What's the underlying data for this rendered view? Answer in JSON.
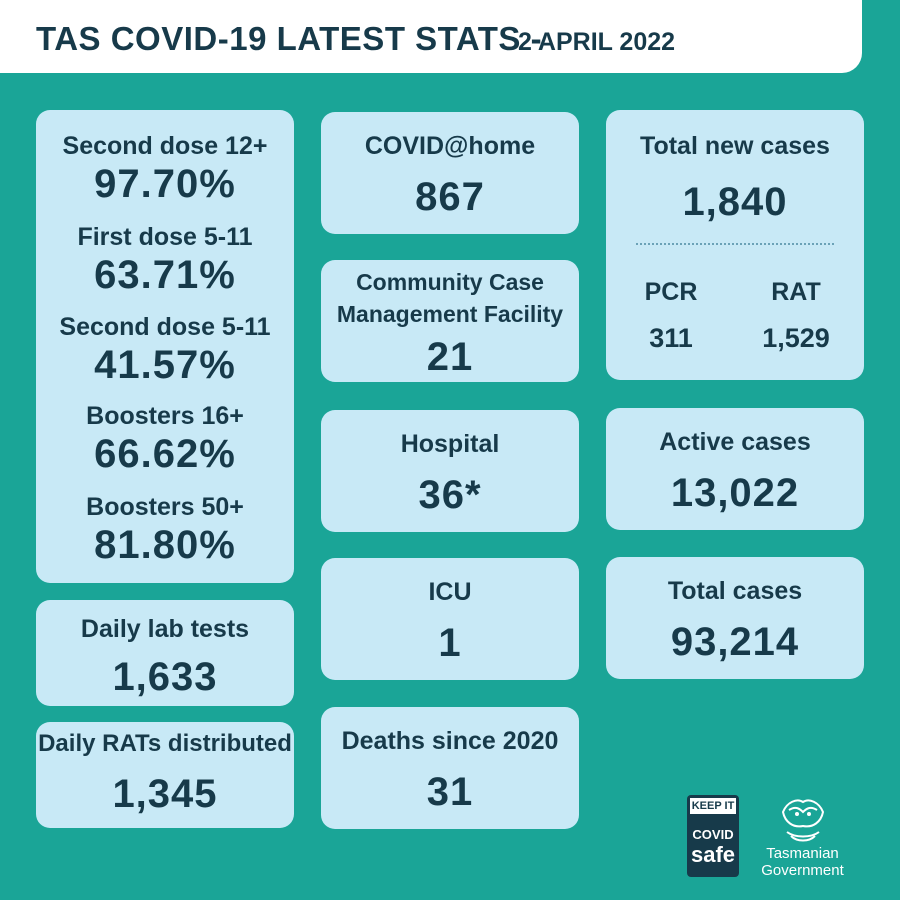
{
  "header": {
    "title": "TAS COVID-19 LATEST STATS -",
    "date": "2 APRIL 2022"
  },
  "vaccination": [
    {
      "label": "Second dose  12+",
      "value": "97.70%"
    },
    {
      "label": "First dose 5-11",
      "value": "63.71%"
    },
    {
      "label": "Second dose 5-11",
      "value": "41.57%"
    },
    {
      "label": "Boosters 16+",
      "value": "66.62%"
    },
    {
      "label": "Boosters 50+",
      "value": "81.80%"
    }
  ],
  "daily_lab_tests": {
    "label": "Daily lab tests",
    "value": "1,633"
  },
  "daily_rats": {
    "label": "Daily RATs distributed",
    "value": "1,345"
  },
  "covid_at_home": {
    "label": "COVID@home",
    "value": "867"
  },
  "ccmf": {
    "label_line1": "Community Case",
    "label_line2": "Management Facility",
    "value": "21"
  },
  "hospital": {
    "label": "Hospital",
    "value": "36*"
  },
  "icu": {
    "label": "ICU",
    "value": "1"
  },
  "deaths": {
    "label": "Deaths since 2020",
    "value": "31"
  },
  "new_cases": {
    "label": "Total new cases",
    "value": "1,840",
    "pcr_label": "PCR",
    "pcr_value": "311",
    "rat_label": "RAT",
    "rat_value": "1,529"
  },
  "active_cases": {
    "label": "Active cases",
    "value": "13,022"
  },
  "total_cases": {
    "label": "Total cases",
    "value": "93,214"
  },
  "logos": {
    "covid_safe_top": "KEEP IT",
    "covid_safe_mid": "COVID",
    "covid_safe_bottom": "safe",
    "gov_line1": "Tasmanian",
    "gov_line2": "Government"
  },
  "colors": {
    "background": "#1aa597",
    "card": "#c8e9f6",
    "text": "#173a4a"
  }
}
